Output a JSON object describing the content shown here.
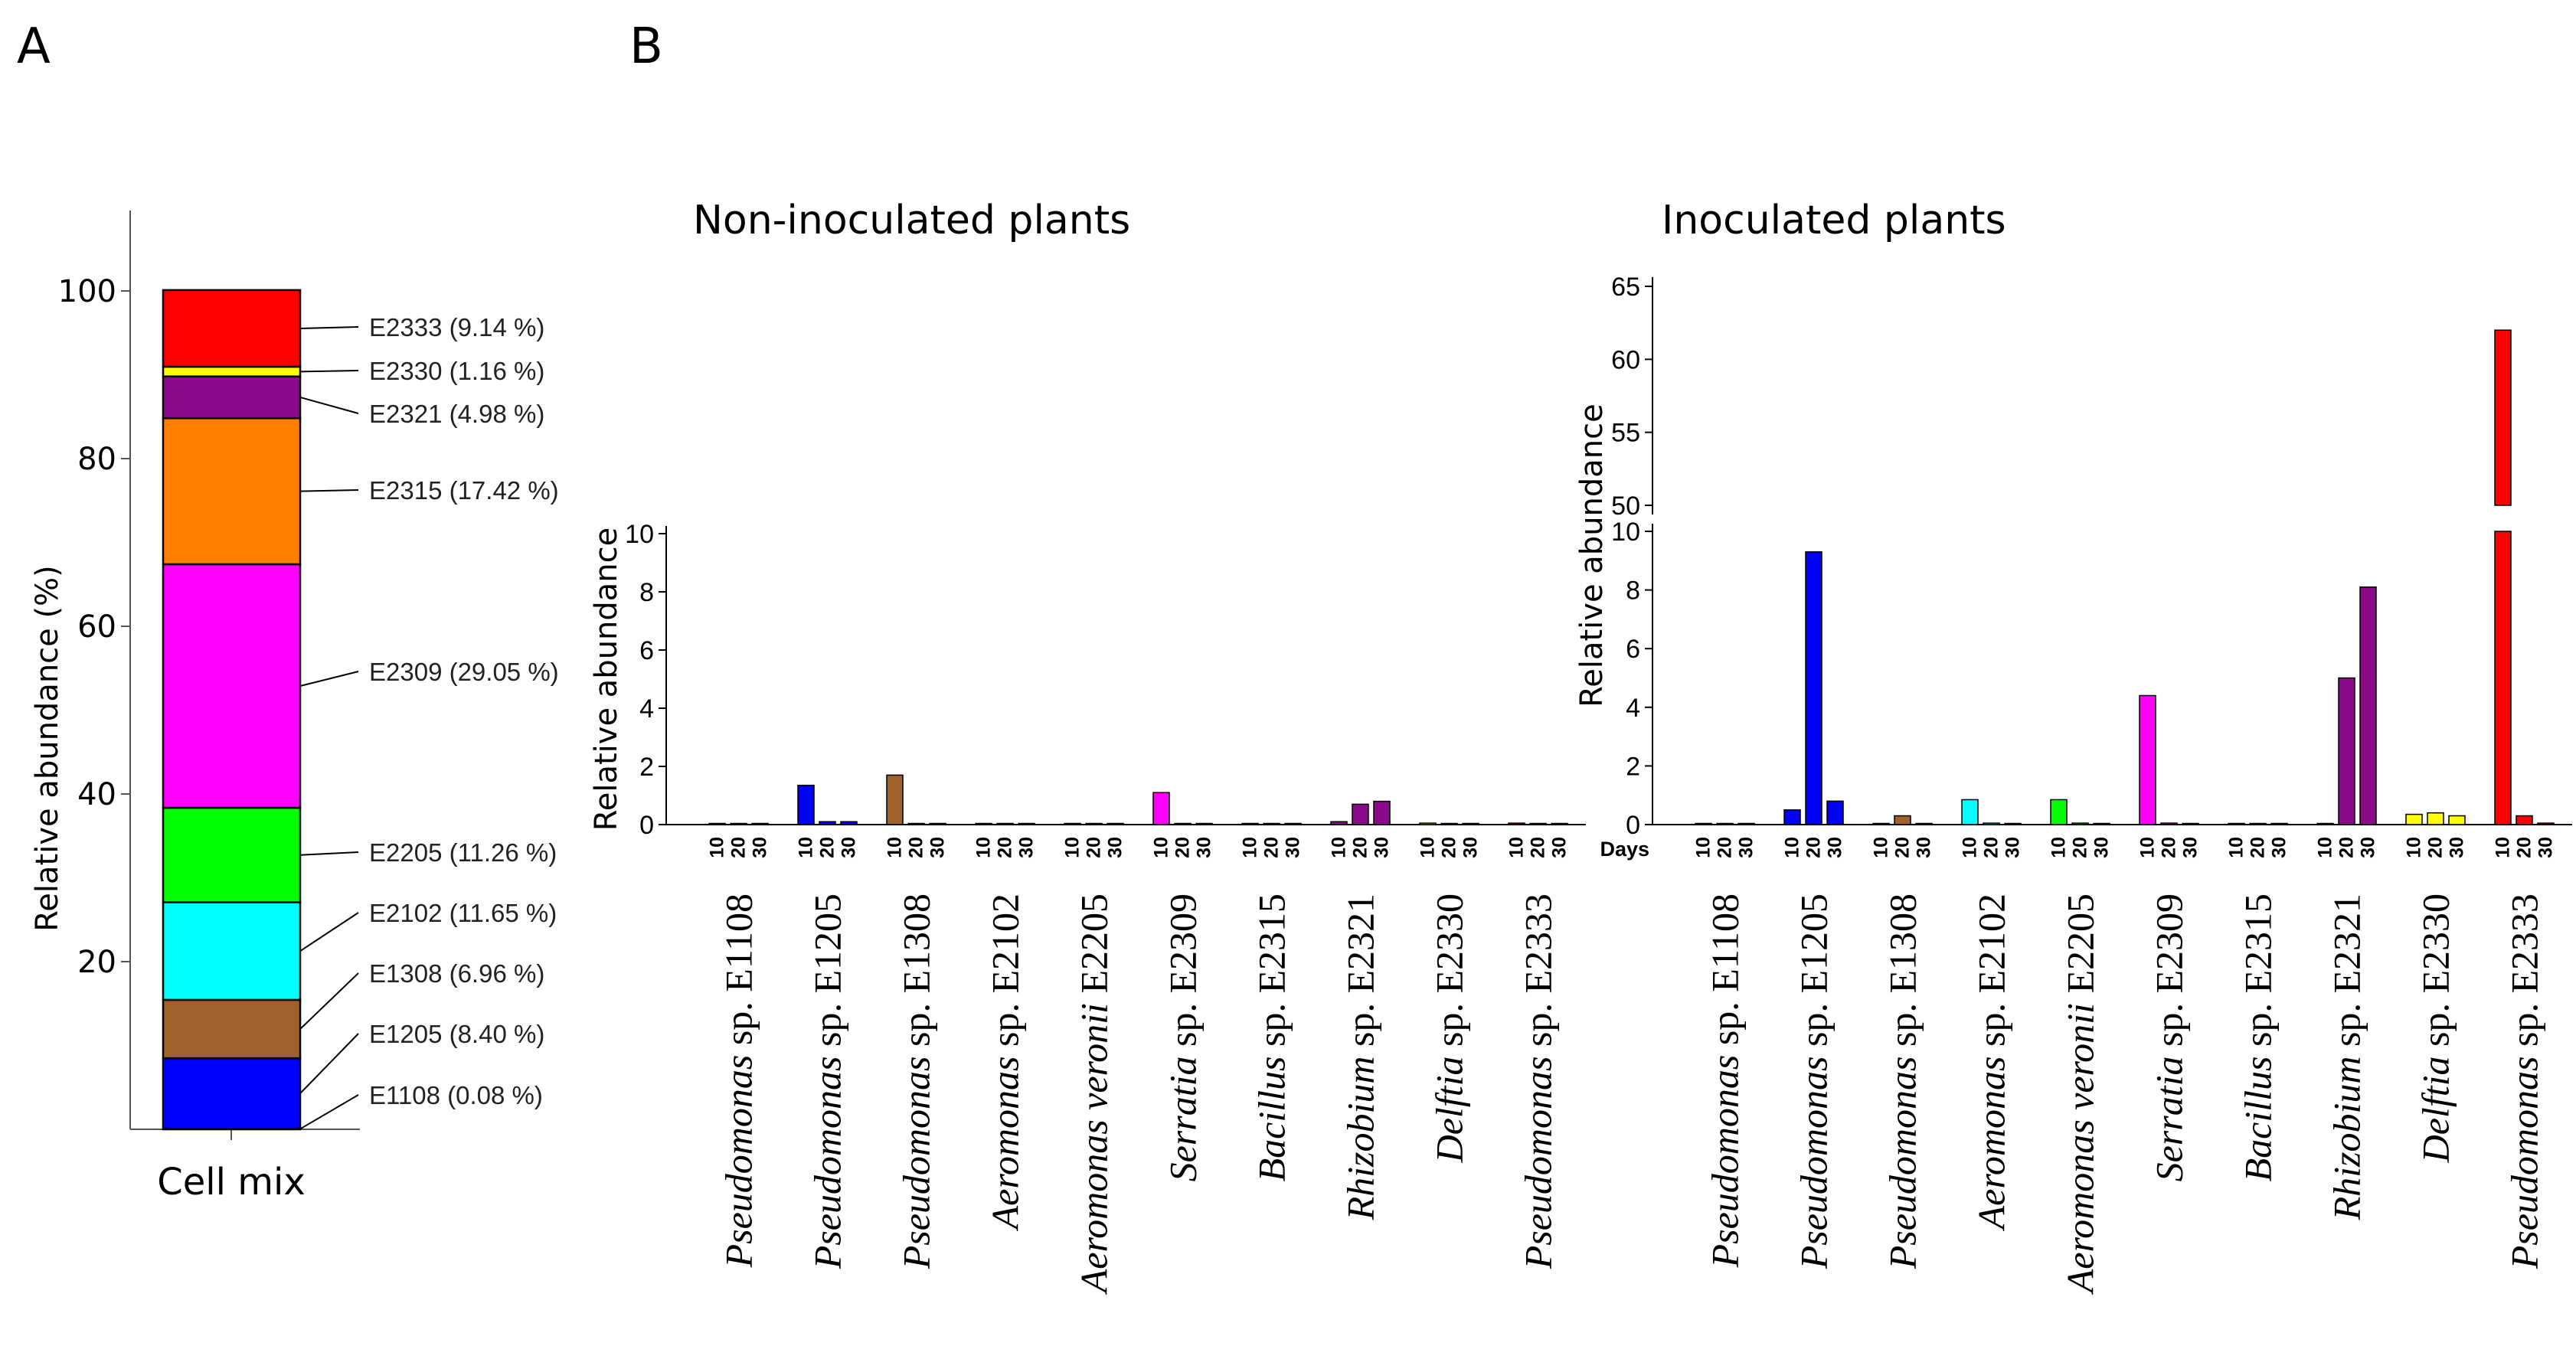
{
  "panel_labels": [
    "A",
    "B"
  ],
  "chart_data": [
    {
      "type": "bar",
      "subtype": "stacked",
      "panel": "A",
      "title": "",
      "xlabel": "",
      "ylabel": "Relative abundance (%)",
      "categories": [
        "Cell mix"
      ],
      "ylim": [
        0,
        110
      ],
      "yticks": [
        20,
        40,
        60,
        80,
        100
      ],
      "segments": [
        {
          "strain": "E1108",
          "label": "E1108 (0.08 %)",
          "value": 0.08,
          "color": "#0000ff"
        },
        {
          "strain": "E1205",
          "label": "E1205 (8.40 %)",
          "value": 8.4,
          "color": "#0000ff"
        },
        {
          "strain": "E1308",
          "label": "E1308 (6.96 %)",
          "value": 6.96,
          "color": "#a0622d"
        },
        {
          "strain": "E2102",
          "label": "E2102 (11.65 %)",
          "value": 11.65,
          "color": "#00ffff"
        },
        {
          "strain": "E2205",
          "label": "E2205 (11.26 %)",
          "value": 11.26,
          "color": "#00ff00"
        },
        {
          "strain": "E2309",
          "label": "E2309 (29.05 %)",
          "value": 29.05,
          "color": "#ff00ff"
        },
        {
          "strain": "E2315",
          "label": "E2315 (17.42 %)",
          "value": 17.42,
          "color": "#ff8000"
        },
        {
          "strain": "E2321",
          "label": "E2321 (4.98 %)",
          "value": 4.98,
          "color": "#8b0a8b"
        },
        {
          "strain": "E2330",
          "label": "E2330 (1.16 %)",
          "value": 1.16,
          "color": "#ffff00"
        },
        {
          "strain": "E2333",
          "label": "E2333 (9.14 %)",
          "value": 9.14,
          "color": "#ff0000"
        }
      ]
    },
    {
      "type": "bar",
      "panel": "B",
      "title": "Non-inoculated plants",
      "xlabel": "",
      "ylabel": "Relative abundance",
      "ylim": [
        0,
        10
      ],
      "yticks": [
        0,
        2,
        4,
        6,
        8,
        10
      ],
      "days": [
        "10",
        "20",
        "30"
      ],
      "groups": [
        {
          "genus": "Pseudomonas",
          "rest": " sp. E1108",
          "color": "#0000ff",
          "values": [
            0.02,
            0.02,
            0.02
          ]
        },
        {
          "genus": "Pseudomonas",
          "rest": " sp. E1205",
          "color": "#0000ff",
          "values": [
            1.35,
            0.1,
            0.1
          ]
        },
        {
          "genus": "Pseudomonas",
          "rest": " sp. E1308",
          "color": "#a0622d",
          "values": [
            1.7,
            0.02,
            0.02
          ]
        },
        {
          "genus": "Aeromonas",
          "rest": " sp. E2102",
          "color": "#00ffff",
          "values": [
            0.02,
            0.02,
            0.02
          ]
        },
        {
          "genus": "Aeromonas veronii",
          "rest": " E2205",
          "color": "#00ff00",
          "values": [
            0.02,
            0.02,
            0.02
          ]
        },
        {
          "genus": "Serratia",
          "rest": " sp. E2309",
          "color": "#ff00ff",
          "values": [
            1.1,
            0.02,
            0.02
          ]
        },
        {
          "genus": "Bacillus",
          "rest": " sp. E2315",
          "color": "#ff8000",
          "values": [
            0.02,
            0.02,
            0.02
          ]
        },
        {
          "genus": "Rhizobium",
          "rest": " sp. E2321",
          "color": "#8b0a8b",
          "values": [
            0.1,
            0.7,
            0.8
          ]
        },
        {
          "genus": "Delftia",
          "rest": " sp. E2330",
          "color": "#ffff00",
          "values": [
            0.05,
            0.02,
            0.02
          ]
        },
        {
          "genus": "Pseudomonas",
          "rest": " sp. E2333",
          "color": "#ff0000",
          "values": [
            0.05,
            0.02,
            0.02
          ]
        }
      ]
    },
    {
      "type": "bar",
      "panel": "B",
      "title": "Inoculated plants",
      "xlabel": "Days",
      "ylabel": "Relative abundance",
      "ylim": [
        0,
        65
      ],
      "axis_break": [
        10,
        50
      ],
      "yticks_lower": [
        0,
        2,
        4,
        6,
        8,
        10
      ],
      "yticks_upper": [
        50,
        55,
        60,
        65
      ],
      "days": [
        "10",
        "20",
        "30"
      ],
      "groups": [
        {
          "genus": "Pseudomonas",
          "rest": " sp. E1108",
          "color": "#0000ff",
          "values": [
            0.02,
            0.02,
            0.02
          ]
        },
        {
          "genus": "Pseudomonas",
          "rest": " sp. E1205",
          "color": "#0000ff",
          "values": [
            0.5,
            9.3,
            0.8
          ]
        },
        {
          "genus": "Pseudomonas",
          "rest": " sp. E1308",
          "color": "#a0622d",
          "values": [
            0.02,
            0.3,
            0.02
          ]
        },
        {
          "genus": "Aeromonas",
          "rest": " sp. E2102",
          "color": "#00ffff",
          "values": [
            0.85,
            0.05,
            0.02
          ]
        },
        {
          "genus": "Aeromonas veronii",
          "rest": " E2205",
          "color": "#00ff00",
          "values": [
            0.85,
            0.05,
            0.02
          ]
        },
        {
          "genus": "Serratia",
          "rest": " sp. E2309",
          "color": "#ff00ff",
          "values": [
            4.4,
            0.05,
            0.02
          ]
        },
        {
          "genus": "Bacillus",
          "rest": " sp. E2315",
          "color": "#ff8000",
          "values": [
            0.02,
            0.02,
            0.02
          ]
        },
        {
          "genus": "Rhizobium",
          "rest": " sp. E2321",
          "color": "#8b0a8b",
          "values": [
            0.02,
            5.0,
            8.1
          ]
        },
        {
          "genus": "Delftia",
          "rest": " sp. E2330",
          "color": "#ffff00",
          "values": [
            0.35,
            0.4,
            0.3
          ]
        },
        {
          "genus": "Pseudomonas",
          "rest": " sp. E2333",
          "color": "#ff0000",
          "values": [
            62.0,
            0.3,
            0.05
          ]
        }
      ]
    }
  ]
}
